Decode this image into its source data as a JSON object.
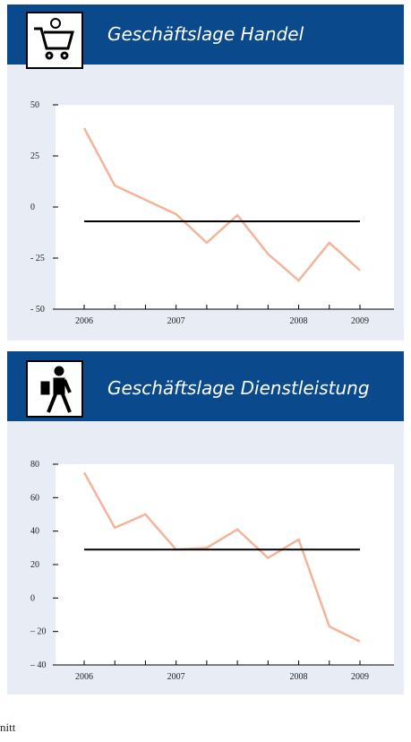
{
  "chart_data": [
    {
      "type": "line",
      "title": "Geschäftslage Handel",
      "categories": [
        "2006",
        null,
        null,
        "2007",
        null,
        null,
        null,
        "2008",
        null,
        "2009"
      ],
      "series": [
        {
          "color": "#f4b49a",
          "values": [
            38.6,
            10.5,
            3.5,
            -3.5,
            -17.5,
            -4,
            -23,
            -36,
            -17.5,
            -31
          ]
        },
        {
          "color": "#000000",
          "values": [
            -7,
            -7,
            -7,
            -7,
            -7,
            -7,
            -7,
            -7,
            -7,
            -7
          ]
        }
      ],
      "ylim": [
        -50,
        50
      ],
      "yticks": [
        {
          "value": -50,
          "label": "- 50"
        },
        {
          "value": -25,
          "label": "- 25"
        },
        0,
        25,
        50
      ]
    },
    {
      "type": "line",
      "title": "Geschäftslage Dienstleistung",
      "categories": [
        "2006",
        null,
        null,
        "2007",
        null,
        null,
        null,
        "2008",
        null,
        "2009"
      ],
      "series": [
        {
          "color": "#f4b49a",
          "values": [
            75,
            42,
            50,
            29,
            30,
            41,
            24,
            35,
            -17,
            -26
          ]
        },
        {
          "color": "#000000",
          "values": [
            29,
            29,
            29,
            29,
            29,
            29,
            29,
            29,
            29,
            29
          ]
        }
      ],
      "ylim": [
        -40,
        80
      ],
      "yticks": [
        {
          "value": -40,
          "label": "– 40"
        },
        {
          "value": -20,
          "label": "– 20"
        },
        0,
        20,
        40,
        60,
        80
      ]
    }
  ],
  "footer": "nitt"
}
